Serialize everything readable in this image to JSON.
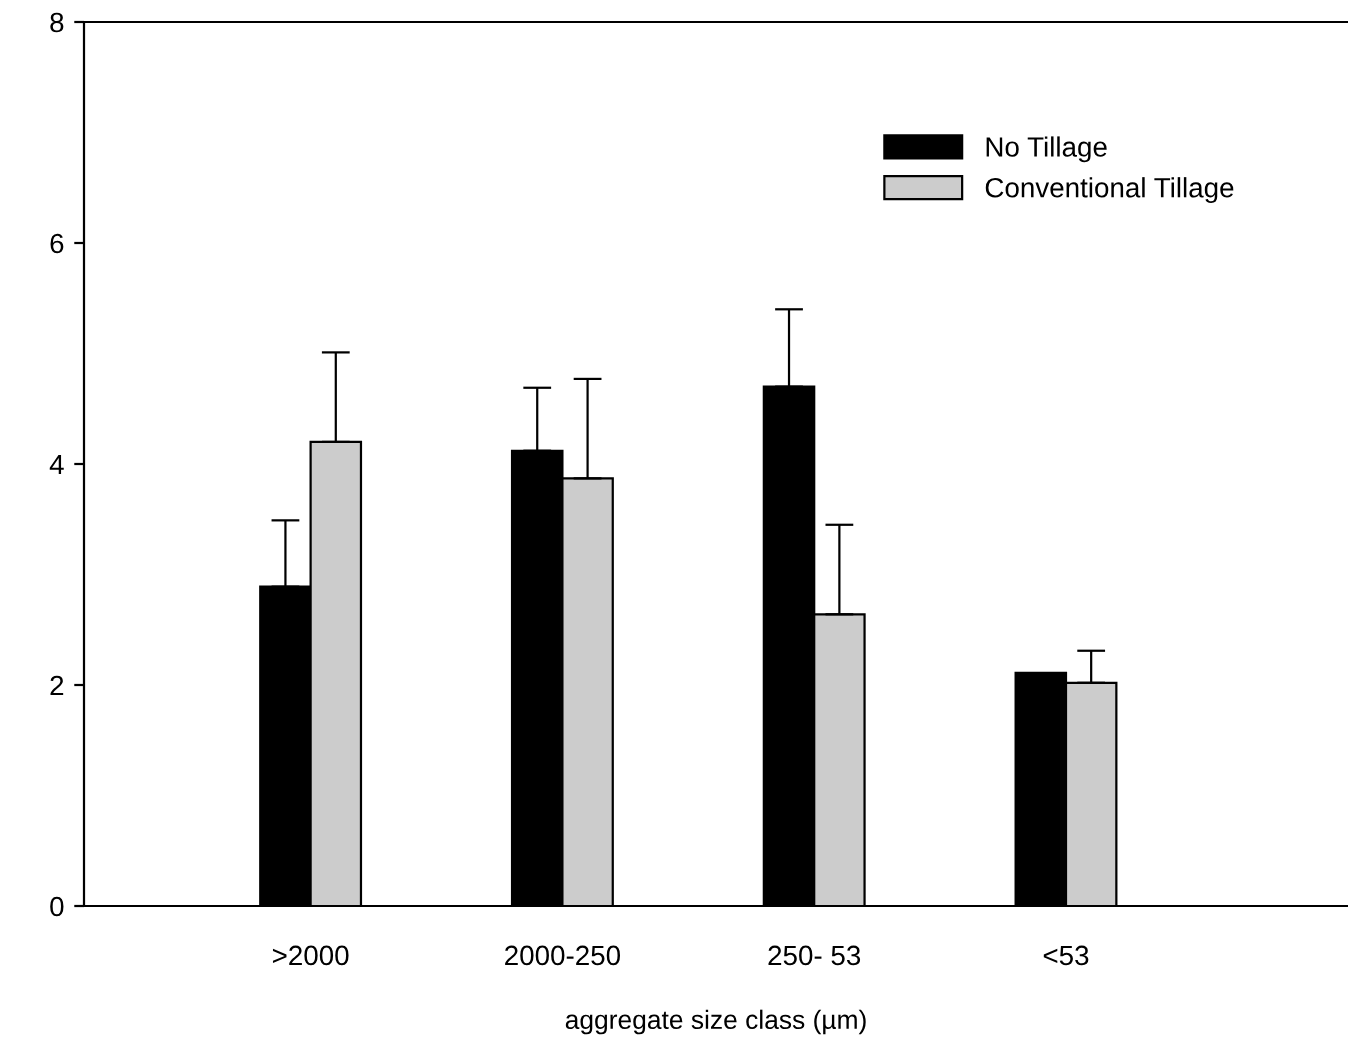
{
  "chart_data": {
    "type": "bar",
    "xlabel": "aggregate size class (µm)",
    "categories": [
      ">2000",
      "2000-250",
      "250- 53",
      "<53"
    ],
    "series": [
      {
        "name": "No Tillage",
        "color": "#000000",
        "values": [
          2.89,
          4.12,
          4.7,
          2.11
        ],
        "errors": [
          [
            2.89,
            3.49
          ],
          [
            4.12,
            4.69
          ],
          [
            4.7,
            5.4
          ],
          null
        ]
      },
      {
        "name": "Conventional Tillage",
        "color": "#cccccc",
        "values": [
          4.2,
          3.87,
          2.64,
          2.02
        ],
        "errors": [
          [
            4.2,
            5.01
          ],
          [
            3.87,
            4.77
          ],
          [
            2.64,
            3.45
          ],
          [
            2.02,
            2.31
          ]
        ]
      }
    ],
    "ylim": [
      0,
      8
    ],
    "yticks": [
      0,
      2,
      4,
      6,
      8
    ],
    "grid": false,
    "legend": "top right"
  }
}
